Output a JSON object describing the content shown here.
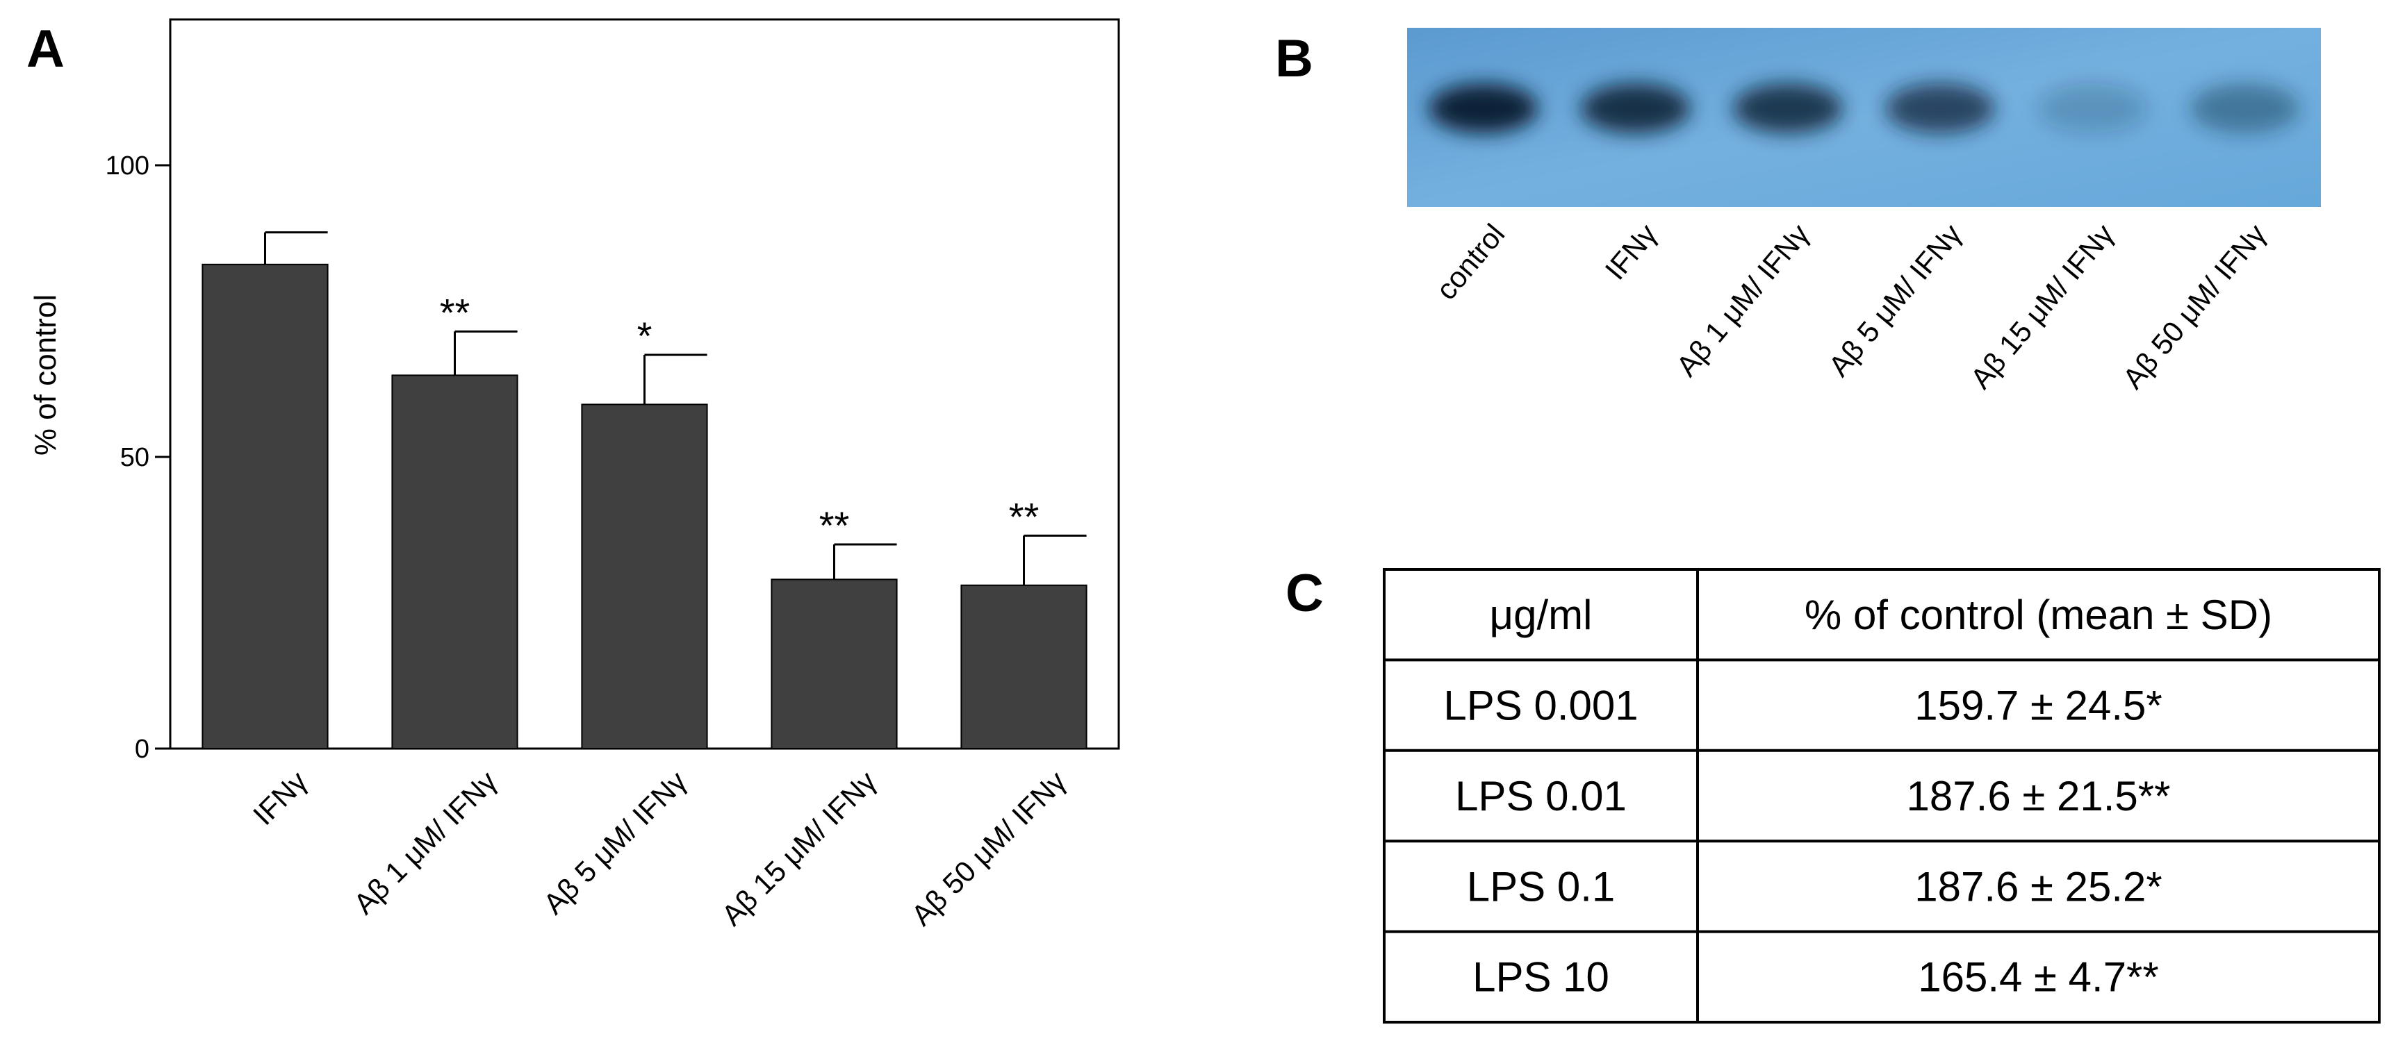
{
  "panels": {
    "a_label": "A",
    "b_label": "B",
    "c_label": "C"
  },
  "chart_data": {
    "type": "bar",
    "categories": [
      "IFNγ",
      "Aβ 1 μM/ IFNγ",
      "Aβ 5 μM/ IFNγ",
      "Aβ 15 μM/ IFNγ",
      "Aβ 50 μM/ IFNγ"
    ],
    "values": [
      83,
      64,
      59,
      29,
      28
    ],
    "errors": [
      5.5,
      7.5,
      8.5,
      6,
      8.5
    ],
    "significance": [
      "",
      "**",
      "*",
      "**",
      "**"
    ],
    "ylabel": "% of control",
    "ylim": [
      0,
      125
    ],
    "yticks": [
      0,
      50,
      100
    ],
    "grid": false,
    "colors": {
      "bar": "#404040",
      "axis": "#000000"
    }
  },
  "blot": {
    "lanes": [
      "control",
      "IFNγ",
      "Aβ 1 μM/ IFNγ",
      "Aβ 5 μM/ IFNγ",
      "Aβ 15 μM/ IFNγ",
      "Aβ 50 μM/ IFNγ"
    ],
    "band_intensity": [
      1.0,
      0.9,
      0.85,
      0.75,
      0.2,
      0.4
    ],
    "colors": {
      "membrane": "#6aa6d6",
      "band": "#0d2438"
    }
  },
  "table": {
    "headers": [
      "μg/ml",
      "% of control (mean ± SD)"
    ],
    "rows": [
      [
        "LPS 0.001",
        "159.7 ± 24.5*"
      ],
      [
        "LPS 0.01",
        "187.6 ± 21.5**"
      ],
      [
        "LPS 0.1",
        "187.6 ± 25.2*"
      ],
      [
        "LPS 10",
        "165.4 ± 4.7**"
      ]
    ]
  }
}
